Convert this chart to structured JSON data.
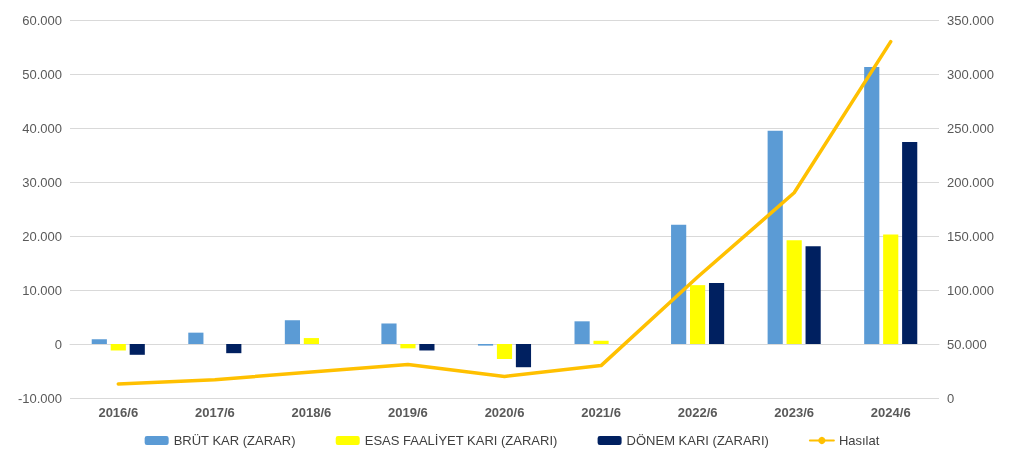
{
  "chart_data": {
    "type": "bar",
    "categories": [
      "2016/6",
      "2017/6",
      "2018/6",
      "2019/6",
      "2020/6",
      "2021/6",
      "2022/6",
      "2023/6",
      "2024/6"
    ],
    "series": [
      {
        "name": "BRÜT KAR (ZARAR)",
        "color": "#5b9bd5",
        "values": [
          900,
          2100,
          4400,
          3800,
          -300,
          4200,
          22100,
          39500,
          51300
        ]
      },
      {
        "name": "ESAS FAALİYET KARI (ZARARI)",
        "color": "#ffff00",
        "values": [
          -1200,
          0,
          1100,
          -800,
          -2800,
          600,
          10900,
          19200,
          20300
        ]
      },
      {
        "name": "DÖNEM KARI (ZARARI)",
        "color": "#002060",
        "values": [
          -2000,
          -1700,
          0,
          -1200,
          -4300,
          0,
          11300,
          18100,
          37400
        ]
      },
      {
        "name": "Hasılat",
        "type": "line",
        "axis": "y2",
        "color": "#ffc000",
        "values": [
          13000,
          17000,
          24000,
          31000,
          20000,
          30000,
          112000,
          190000,
          330000
        ]
      }
    ],
    "ylim": [
      -10000,
      60000
    ],
    "yticks": [
      {
        "value": -10000,
        "label": "-10.000"
      },
      {
        "value": 0,
        "label": "0"
      },
      {
        "value": 10000,
        "label": "10.000"
      },
      {
        "value": 20000,
        "label": "20.000"
      },
      {
        "value": 30000,
        "label": "30.000"
      },
      {
        "value": 40000,
        "label": "40.000"
      },
      {
        "value": 50000,
        "label": "50.000"
      },
      {
        "value": 60000,
        "label": "60.000"
      }
    ],
    "y2lim": [
      0,
      350000
    ],
    "y2ticks": [
      {
        "value": 0,
        "label": "0"
      },
      {
        "value": 50000,
        "label": "50.000"
      },
      {
        "value": 100000,
        "label": "100.000"
      },
      {
        "value": 150000,
        "label": "150.000"
      },
      {
        "value": 200000,
        "label": "200.000"
      },
      {
        "value": 250000,
        "label": "250.000"
      },
      {
        "value": 300000,
        "label": "300.000"
      },
      {
        "value": 350000,
        "label": "350.000"
      }
    ],
    "grid": "y",
    "legend": "bottom",
    "marker": "none"
  }
}
